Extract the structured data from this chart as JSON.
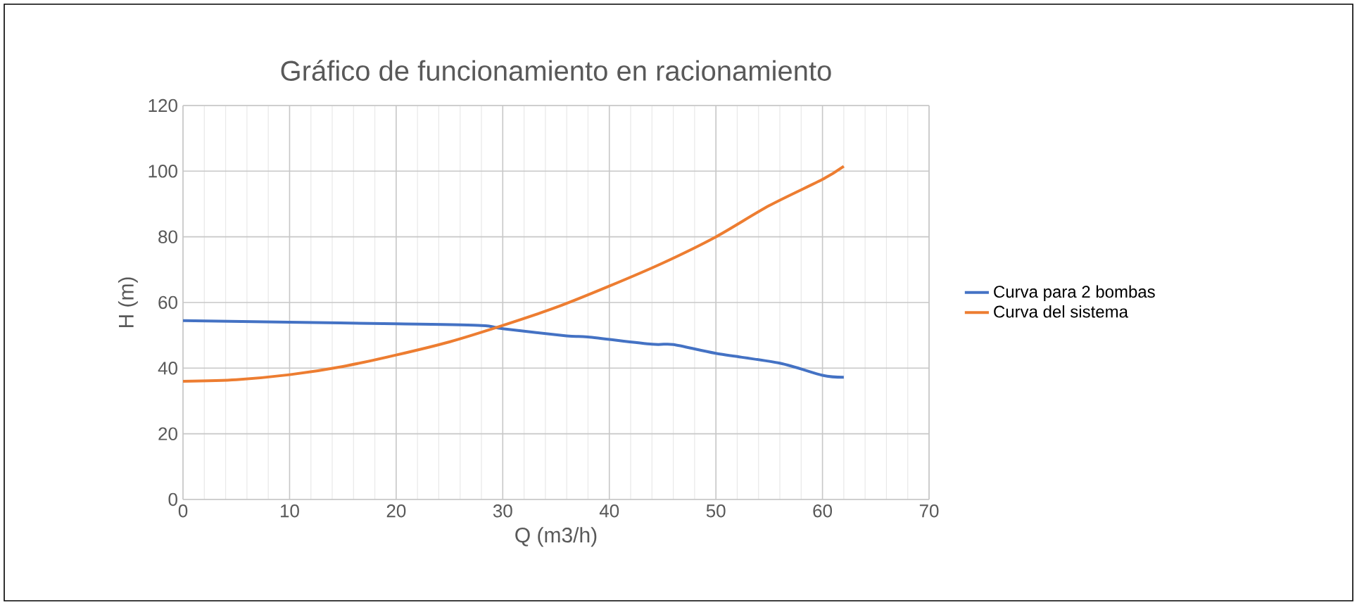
{
  "chart_data": {
    "type": "line",
    "title": "Gráfico de funcionamiento en racionamiento",
    "xlabel": "Q (m3/h)",
    "ylabel": "H (m)",
    "xlim": [
      0,
      70
    ],
    "xticks": [
      0,
      10,
      20,
      30,
      40,
      50,
      60,
      70
    ],
    "ylim": [
      0,
      120
    ],
    "yticks": [
      0,
      20,
      40,
      60,
      80,
      100,
      120
    ],
    "grid": true,
    "legend": "right",
    "series": [
      {
        "name": "Curva para 2 bombas",
        "color": "#4472c4",
        "x": [
          0,
          10,
          20,
          28,
          30,
          36,
          38,
          44,
          46,
          50,
          56,
          60,
          62
        ],
        "values": [
          54.5,
          54,
          53.5,
          53,
          52,
          49.8,
          49.5,
          47.3,
          47.2,
          44.5,
          41.5,
          37.8,
          37.2
        ]
      },
      {
        "name": "Curva del sistema",
        "color": "#ed7d31",
        "x": [
          0,
          5,
          10,
          15,
          20,
          25,
          30,
          35,
          40,
          45,
          50,
          55,
          60,
          62
        ],
        "values": [
          36,
          36.5,
          38,
          40.5,
          44,
          48,
          53,
          58.5,
          65,
          72,
          80,
          89.5,
          97.5,
          101.5
        ]
      }
    ]
  }
}
